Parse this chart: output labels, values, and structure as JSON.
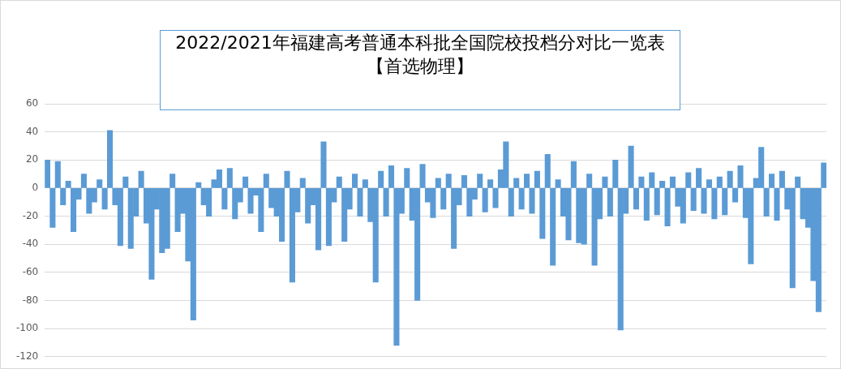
{
  "chart_data": {
    "type": "bar",
    "title": "2022/2021年福建高考普通本科批全国院校投档分对比一览表【首选物理】",
    "categories": [
      null,
      null,
      null,
      null,
      null,
      null,
      null,
      null,
      null,
      null,
      null,
      null,
      null,
      null,
      null,
      null,
      null,
      null,
      null,
      null,
      null,
      null,
      null,
      null,
      null,
      null,
      null,
      null,
      null,
      null,
      null,
      null,
      null,
      null,
      null,
      null,
      null,
      null,
      null,
      null,
      null,
      null,
      null,
      null,
      null,
      null,
      null,
      null,
      null,
      null,
      null,
      null,
      null,
      null,
      null,
      null,
      null,
      null,
      null,
      null,
      null,
      null,
      null,
      null,
      null,
      null,
      null,
      null,
      null,
      null,
      null,
      null,
      null,
      null,
      null,
      null,
      null,
      null,
      null,
      null,
      null,
      null,
      null,
      null,
      null,
      null,
      null,
      null,
      null,
      null,
      null,
      null,
      null,
      null,
      null,
      null,
      null,
      null,
      null,
      null,
      null,
      null,
      null,
      null,
      null,
      null,
      null,
      null,
      null,
      null,
      null,
      null,
      null,
      null,
      null,
      null,
      null,
      null,
      null,
      null,
      null,
      null,
      null,
      null,
      null,
      null,
      null,
      null,
      null,
      null,
      null,
      null,
      null,
      null,
      null,
      null,
      null,
      null,
      null,
      null,
      null,
      null,
      null,
      null,
      null,
      null,
      null,
      null,
      null,
      null
    ],
    "values": [
      20,
      -28,
      19,
      -12,
      5,
      -31,
      -8,
      10,
      -18,
      -10,
      6,
      -15,
      41,
      -12,
      -41,
      8,
      -43,
      -20,
      12,
      -25,
      -65,
      -15,
      -46,
      -43,
      10,
      -31,
      -18,
      -52,
      -94,
      4,
      -12,
      -20,
      6,
      13,
      -15,
      14,
      -22,
      -10,
      8,
      -18,
      -5,
      -31,
      10,
      -14,
      -20,
      -38,
      12,
      -67,
      -17,
      7,
      -25,
      -12,
      -44,
      33,
      -41,
      -10,
      8,
      -38,
      -15,
      10,
      -20,
      6,
      -24,
      -67,
      12,
      -20,
      16,
      -112,
      -18,
      14,
      -23,
      -80,
      17,
      -10,
      -21,
      7,
      -15,
      10,
      -43,
      -12,
      9,
      -20,
      -8,
      10,
      -17,
      6,
      -14,
      13,
      33,
      -20,
      7,
      -15,
      10,
      -18,
      12,
      -36,
      24,
      -55,
      6,
      -20,
      -37,
      19,
      -39,
      -40,
      10,
      -55,
      -22,
      8,
      -20,
      20,
      -101,
      -18,
      30,
      -15,
      8,
      -23,
      11,
      -19,
      5,
      -27,
      8,
      -13,
      -25,
      11,
      -16,
      14,
      -18,
      6,
      -22,
      8,
      -19,
      12,
      -10,
      16,
      -21,
      -54,
      7,
      29,
      -20,
      10,
      -23,
      12,
      -15,
      -71,
      8,
      -22,
      -28,
      -66,
      -88,
      18
    ],
    "color": "#5b9bd5",
    "ylim": [
      -120,
      60
    ],
    "yticks": [
      -120,
      -100,
      -80,
      -60,
      -40,
      -20,
      0,
      20,
      40,
      60
    ],
    "grid": "y"
  }
}
